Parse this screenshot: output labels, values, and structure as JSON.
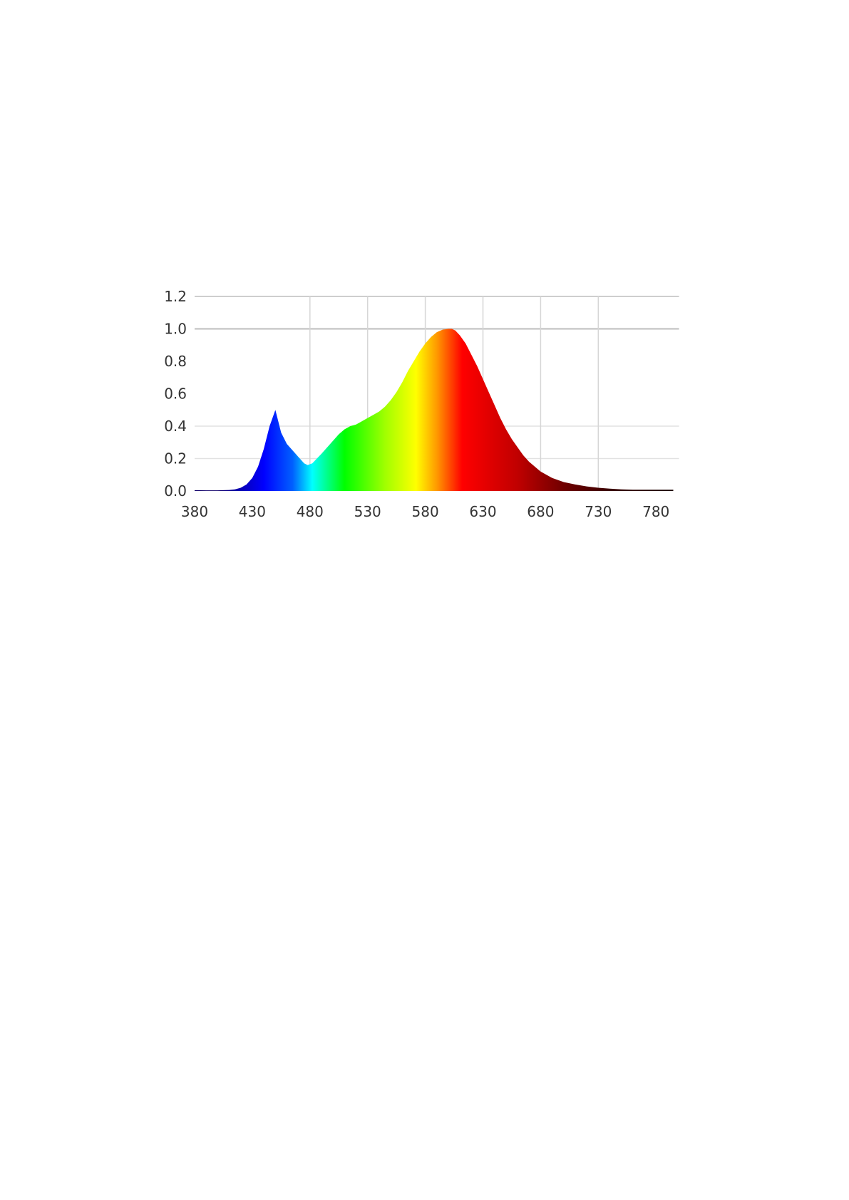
{
  "chart_data": {
    "type": "area",
    "title": "",
    "xlabel": "",
    "ylabel": "",
    "xlim": [
      380,
      800
    ],
    "ylim": [
      0,
      1.2
    ],
    "x_ticks": [
      380,
      430,
      480,
      530,
      580,
      630,
      680,
      730,
      780
    ],
    "y_ticks": [
      "0.0",
      "0.2",
      "0.4",
      "0.6",
      "0.8",
      "1.0",
      "1.2"
    ],
    "grid": true,
    "vertical_gridlines": [
      480,
      530,
      580,
      630,
      680,
      730
    ],
    "horizontal_gridlines": [
      0.2,
      0.4,
      1.0,
      1.2
    ],
    "fill": "wavelength-spectrum-gradient",
    "gradient_stops": [
      {
        "nm": 400,
        "color": "#10006a"
      },
      {
        "nm": 440,
        "color": "#0000ff"
      },
      {
        "nm": 465,
        "color": "#0060ff"
      },
      {
        "nm": 482,
        "color": "#00ffff"
      },
      {
        "nm": 510,
        "color": "#00ff00"
      },
      {
        "nm": 545,
        "color": "#a0ff00"
      },
      {
        "nm": 572,
        "color": "#ffff00"
      },
      {
        "nm": 590,
        "color": "#ff9900"
      },
      {
        "nm": 612,
        "color": "#ff0000"
      },
      {
        "nm": 660,
        "color": "#c00000"
      },
      {
        "nm": 700,
        "color": "#700000"
      },
      {
        "nm": 740,
        "color": "#3a0000"
      },
      {
        "nm": 790,
        "color": "#1a0000"
      }
    ],
    "x": [
      380,
      390,
      400,
      410,
      415,
      420,
      425,
      430,
      435,
      440,
      445,
      450,
      455,
      460,
      465,
      470,
      475,
      478,
      482,
      486,
      490,
      495,
      500,
      505,
      510,
      515,
      520,
      525,
      530,
      535,
      540,
      545,
      550,
      555,
      560,
      565,
      570,
      575,
      580,
      585,
      590,
      595,
      600,
      603,
      606,
      610,
      615,
      620,
      625,
      630,
      635,
      640,
      645,
      650,
      655,
      660,
      665,
      670,
      675,
      680,
      690,
      700,
      710,
      720,
      730,
      740,
      750,
      760,
      770,
      780,
      790,
      795
    ],
    "y": [
      0.005,
      0.004,
      0.004,
      0.006,
      0.01,
      0.02,
      0.04,
      0.08,
      0.15,
      0.26,
      0.4,
      0.5,
      0.36,
      0.29,
      0.25,
      0.21,
      0.17,
      0.16,
      0.17,
      0.2,
      0.23,
      0.27,
      0.31,
      0.35,
      0.38,
      0.4,
      0.41,
      0.43,
      0.45,
      0.47,
      0.49,
      0.52,
      0.56,
      0.61,
      0.67,
      0.74,
      0.8,
      0.86,
      0.91,
      0.95,
      0.98,
      0.995,
      1.0,
      1.0,
      0.99,
      0.96,
      0.91,
      0.84,
      0.77,
      0.69,
      0.61,
      0.53,
      0.45,
      0.38,
      0.32,
      0.27,
      0.22,
      0.18,
      0.15,
      0.12,
      0.08,
      0.055,
      0.04,
      0.028,
      0.02,
      0.014,
      0.01,
      0.008,
      0.008,
      0.008,
      0.008,
      0.008
    ]
  }
}
